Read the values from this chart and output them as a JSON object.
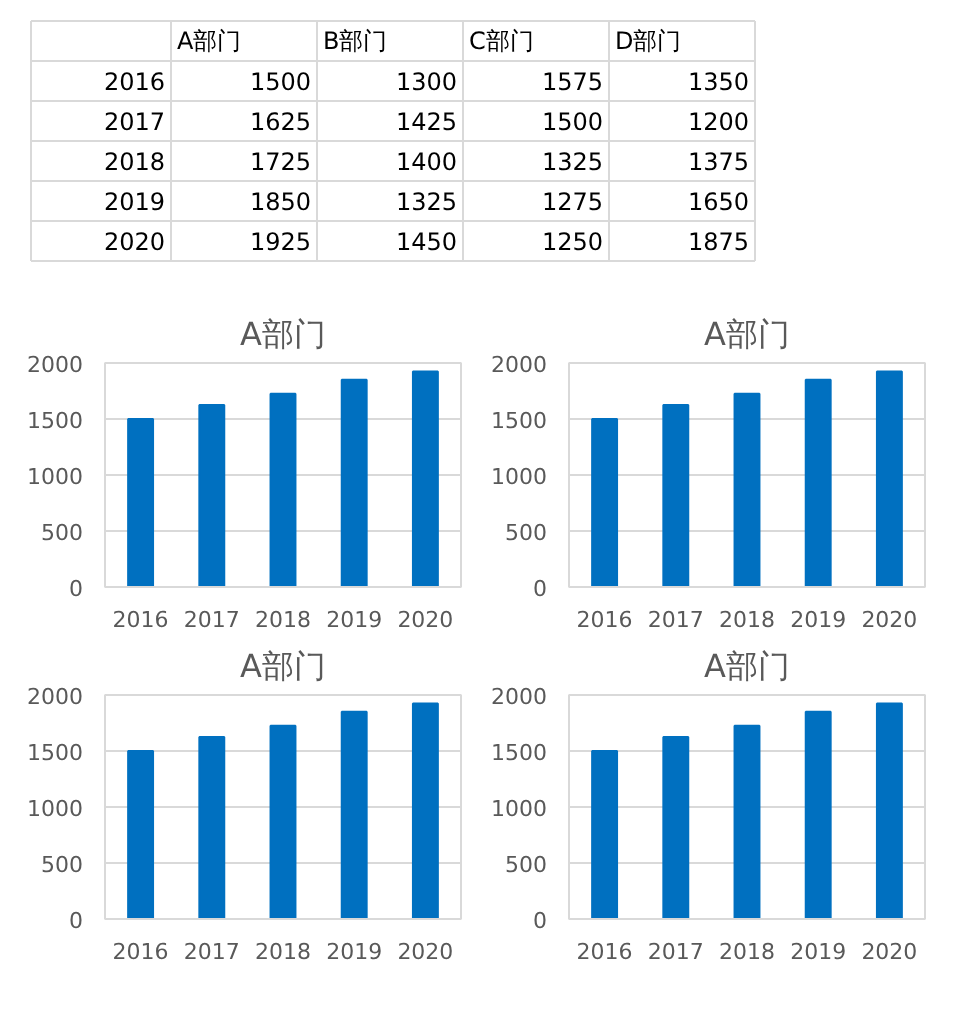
{
  "chart_data": [
    {
      "type": "heatmap",
      "categories": [
        "A部门",
        "B部门",
        "C部门",
        "D部门"
      ],
      "y_categories": [
        "2016",
        "2017",
        "2018",
        "2019",
        "2020"
      ],
      "cells": [
        [
          1500,
          1300,
          1575,
          1350
        ],
        [
          1625,
          1425,
          1500,
          1200
        ],
        [
          1725,
          1400,
          1325,
          1375
        ],
        [
          1850,
          1325,
          1275,
          1650
        ],
        [
          1925,
          1450,
          1250,
          1875
        ]
      ],
      "data_labels": true
    },
    {
      "type": "bar",
      "title": "A部门",
      "categories": [
        "2016",
        "2017",
        "2018",
        "2019",
        "2020"
      ],
      "values": [
        1500,
        1625,
        1725,
        1850,
        1925
      ],
      "color": "#0070c0",
      "ylim": [
        0,
        2000
      ],
      "yticks": [
        0,
        500,
        1000,
        1500,
        2000
      ],
      "grid": "y"
    },
    {
      "type": "bar",
      "title": "A部门",
      "categories": [
        "2016",
        "2017",
        "2018",
        "2019",
        "2020"
      ],
      "values": [
        1500,
        1625,
        1725,
        1850,
        1925
      ],
      "color": "#0070c0",
      "ylim": [
        0,
        2000
      ],
      "yticks": [
        0,
        500,
        1000,
        1500,
        2000
      ],
      "grid": "y"
    },
    {
      "type": "bar",
      "title": "A部门",
      "categories": [
        "2016",
        "2017",
        "2018",
        "2019",
        "2020"
      ],
      "values": [
        1500,
        1625,
        1725,
        1850,
        1925
      ],
      "color": "#0070c0",
      "ylim": [
        0,
        2000
      ],
      "yticks": [
        0,
        500,
        1000,
        1500,
        2000
      ],
      "grid": "y"
    },
    {
      "type": "bar",
      "title": "A部门",
      "categories": [
        "2016",
        "2017",
        "2018",
        "2019",
        "2020"
      ],
      "values": [
        1500,
        1625,
        1725,
        1850,
        1925
      ],
      "color": "#0070c0",
      "ylim": [
        0,
        2000
      ],
      "yticks": [
        0,
        500,
        1000,
        1500,
        2000
      ],
      "grid": "y"
    }
  ]
}
